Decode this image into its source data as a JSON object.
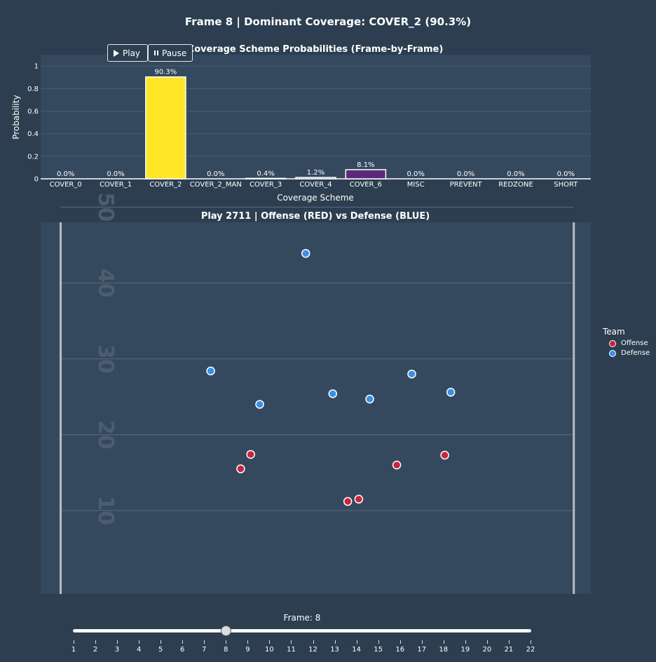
{
  "main_title": "Frame 8 | Dominant Coverage: COVER_2 (90.3%)",
  "controls": {
    "play_label": "Play",
    "pause_label": "Pause"
  },
  "colors": {
    "background": "#2c3e50",
    "plot_bg": "#34495e",
    "offense": "#c8243c",
    "defense": "#3a8fe6",
    "bar_cover2": "#ffe626",
    "bar_cover6": "#5a2a78",
    "bar_cover4": "#5a6aa0"
  },
  "chart_data": [
    {
      "type": "bar",
      "title": "Coverage Scheme Probabilities (Frame-by-Frame)",
      "xlabel": "Coverage Scheme",
      "ylabel": "Probability",
      "ylim": [
        0,
        1.1
      ],
      "yticks": [
        0,
        0.2,
        0.4,
        0.6,
        0.8,
        1
      ],
      "ytick_labels": [
        "0",
        "0.2",
        "0.4",
        "0.6",
        "0.8",
        "1"
      ],
      "categories": [
        "COVER_0",
        "COVER_1",
        "COVER_2",
        "COVER_2_MAN",
        "COVER_3",
        "COVER_4",
        "COVER_6",
        "MISC",
        "PREVENT",
        "REDZONE",
        "SHORT"
      ],
      "values": [
        0.0,
        0.0,
        0.903,
        0.0,
        0.004,
        0.012,
        0.081,
        0.0,
        0.0,
        0.0,
        0.0
      ],
      "labels": [
        "0.0%",
        "0.0%",
        "90.3%",
        "0.0%",
        "0.4%",
        "1.2%",
        "8.1%",
        "0.0%",
        "0.0%",
        "0.0%",
        "0.0%"
      ],
      "bar_colors": [
        "#440154",
        "#482878",
        "#ffe626",
        "#3b528b",
        "#5a6aa0",
        "#5a6aa0",
        "#5a2a78",
        "#35b779",
        "#6ece58",
        "#b5de2b",
        "#fde725"
      ]
    },
    {
      "type": "scatter",
      "title": "Play 2711 | Offense (RED) vs Defense (BLUE)",
      "xlim": [
        -1,
        54
      ],
      "ylim": [
        -1,
        48
      ],
      "yard_lines": [
        10,
        20,
        30,
        40,
        50
      ],
      "yard_labels": [
        "10",
        "20",
        "30",
        "40",
        "50"
      ],
      "sidelines_x": [
        1,
        52.3
      ],
      "legend_title": "Team",
      "series": [
        {
          "name": "Offense",
          "x": [
            19.0,
            20.0,
            29.7,
            30.8,
            34.6,
            39.4
          ],
          "y": [
            15.5,
            17.4,
            11.2,
            11.5,
            16.0,
            17.3
          ]
        },
        {
          "name": "Defense",
          "x": [
            16.0,
            20.9,
            25.5,
            28.2,
            31.9,
            36.1,
            40.0
          ],
          "y": [
            28.4,
            24.0,
            43.9,
            25.4,
            24.7,
            28.0,
            25.6
          ]
        }
      ]
    }
  ],
  "slider": {
    "label": "Frame: 8",
    "current": 8,
    "min": 1,
    "max": 22,
    "tick_labels": [
      "1",
      "2",
      "3",
      "4",
      "5",
      "6",
      "7",
      "8",
      "9",
      "10",
      "11",
      "12",
      "13",
      "14",
      "15",
      "16",
      "17",
      "18",
      "19",
      "20",
      "21",
      "22"
    ]
  }
}
